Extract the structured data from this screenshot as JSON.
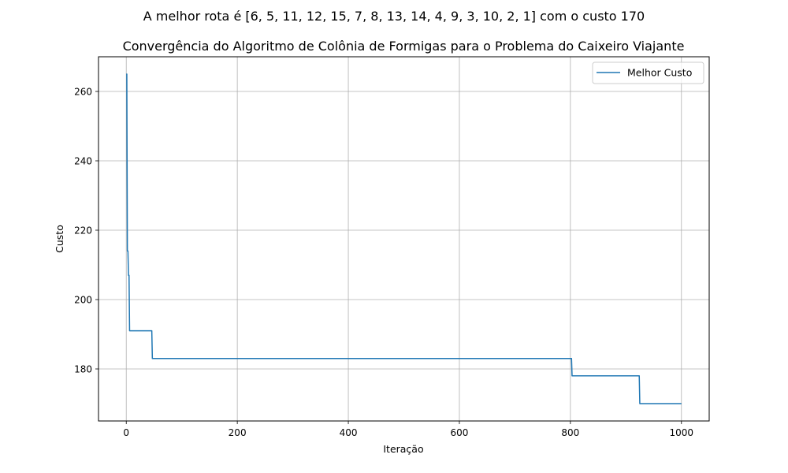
{
  "figure": {
    "suptitle": "A melhor rota é [6, 5, 11, 12, 15, 7, 8, 13, 14, 4, 9, 3, 10, 2, 1] com o custo 170"
  },
  "chart_data": {
    "type": "line",
    "title": "Convergência do Algoritmo de Colônia de Formigas para o Problema do Caixeiro Viajante",
    "xlabel": "Iteração",
    "ylabel": "Custo",
    "xlim": [
      -50,
      1050
    ],
    "ylim": [
      165,
      270
    ],
    "xticks": [
      0,
      200,
      400,
      600,
      800,
      1000
    ],
    "yticks": [
      180,
      200,
      220,
      240,
      260
    ],
    "grid": true,
    "legend_position": "top-right",
    "series": [
      {
        "name": "Melhor Custo",
        "color": "#1f77b4",
        "step": true,
        "points": [
          [
            0,
            265
          ],
          [
            1,
            265
          ],
          [
            2,
            214
          ],
          [
            3,
            214
          ],
          [
            4,
            207
          ],
          [
            5,
            207
          ],
          [
            6,
            191
          ],
          [
            46,
            191
          ],
          [
            47,
            183
          ],
          [
            802,
            183
          ],
          [
            803,
            178
          ],
          [
            924,
            178
          ],
          [
            925,
            170
          ],
          [
            1000,
            170
          ]
        ]
      }
    ]
  }
}
